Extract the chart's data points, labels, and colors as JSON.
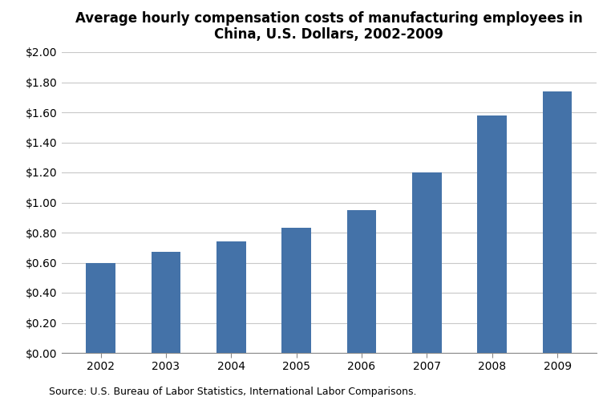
{
  "title": "Average hourly compensation costs of manufacturing employees in\nChina, U.S. Dollars, 2002-2009",
  "categories": [
    "2002",
    "2003",
    "2004",
    "2005",
    "2006",
    "2007",
    "2008",
    "2009"
  ],
  "values": [
    0.6,
    0.67,
    0.74,
    0.83,
    0.95,
    1.2,
    1.58,
    1.74
  ],
  "bar_color": "#4472a8",
  "ylim": [
    0.0,
    2.0
  ],
  "yticks": [
    0.0,
    0.2,
    0.4,
    0.6,
    0.8,
    1.0,
    1.2,
    1.4,
    1.6,
    1.8,
    2.0
  ],
  "source_text": "Source: U.S. Bureau of Labor Statistics, International Labor Comparisons.",
  "background_color": "#ffffff",
  "title_fontsize": 12,
  "tick_fontsize": 10,
  "source_fontsize": 9,
  "bar_width": 0.45
}
